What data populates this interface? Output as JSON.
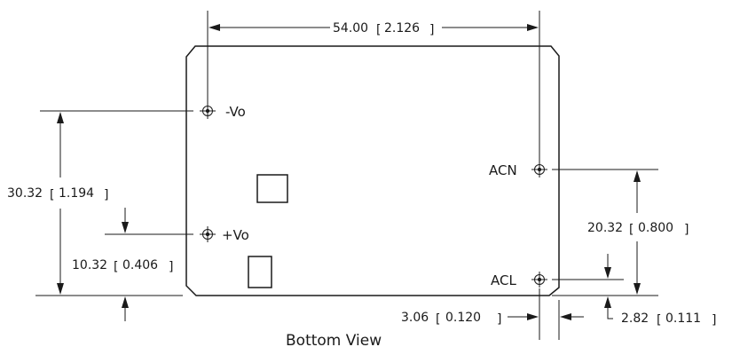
{
  "view_title": "Bottom View",
  "pins": {
    "neg_vo": "-Vo",
    "pos_vo": "+Vo",
    "acn": "ACN",
    "acl": "ACL"
  },
  "dimensions": {
    "width": {
      "mm": "54.00",
      "in": "2.126"
    },
    "height_vo": {
      "mm": "30.32",
      "in": "1.194"
    },
    "pos_vo_offset": {
      "mm": "10.32",
      "in": "0.406"
    },
    "ac_spacing": {
      "mm": "20.32",
      "in": "0.800"
    },
    "ac_x_offset": {
      "mm": "3.06",
      "in": "0.120"
    },
    "acl_y_offset": {
      "mm": "2.82",
      "in": "0.111"
    }
  }
}
